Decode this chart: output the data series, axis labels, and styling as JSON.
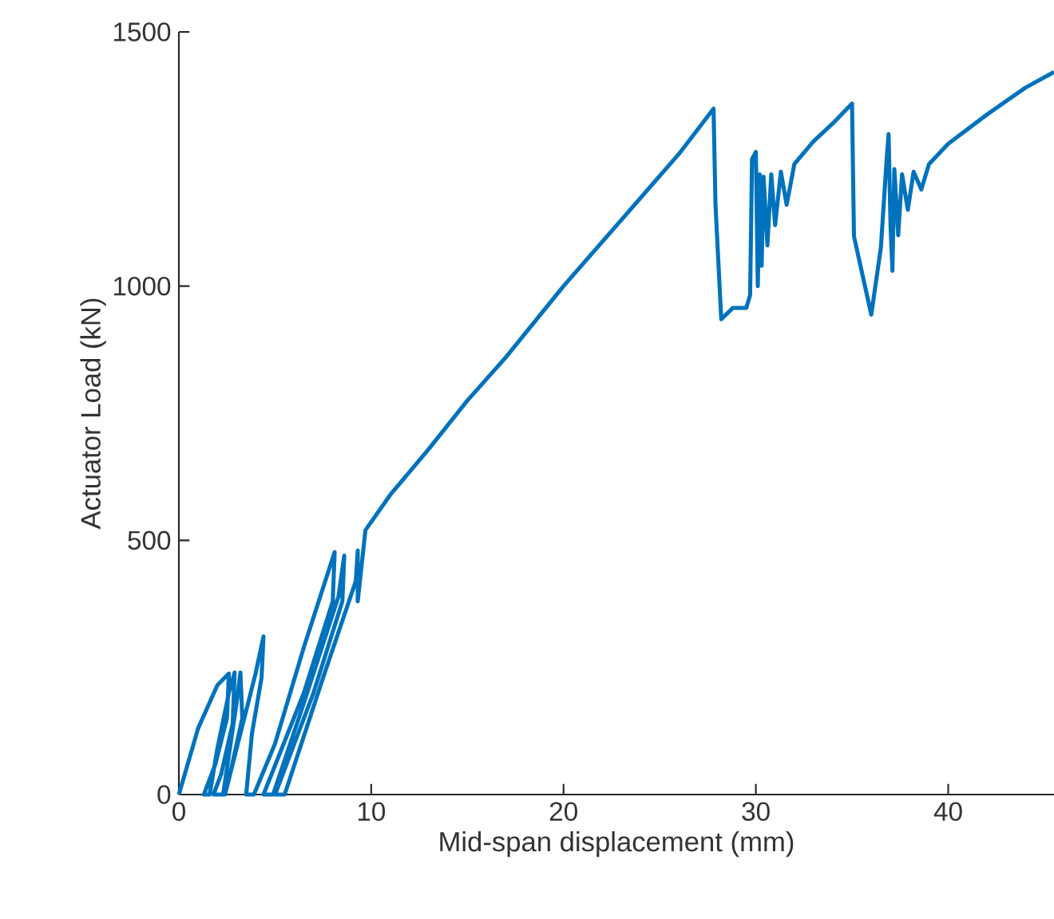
{
  "chart_data": {
    "type": "line",
    "xlabel": "Mid-span displacement (mm)",
    "ylabel": "Actuator Load (kN)",
    "xlim": [
      0,
      45.5
    ],
    "ylim": [
      0,
      1500
    ],
    "xticks": [
      0,
      10,
      20,
      30,
      40
    ],
    "yticks": [
      0,
      500,
      1000,
      1500
    ],
    "marker": "none",
    "series": [
      {
        "color": "#0072bd",
        "x": [
          0,
          1.0,
          2.0,
          2.6,
          2.5,
          1.9,
          1.3,
          1.6,
          2.0,
          2.6,
          2.9,
          2.8,
          2.2,
          1.8,
          2.3,
          3.0,
          3.2,
          3.3,
          2.6,
          2.4,
          4.0,
          4.4,
          4.3,
          3.8,
          3.5,
          3.9,
          5.0,
          6.5,
          8.1,
          8.0,
          6.5,
          4.4,
          4.9,
          6.5,
          8.3,
          8.6,
          8.5,
          7.0,
          5.0,
          5.5,
          7.5,
          9.2,
          9.3,
          9.3,
          9.7,
          11,
          13,
          15,
          17,
          20,
          23,
          26,
          27.8,
          27.9,
          28.2,
          28.8,
          29.5,
          29.7,
          29.8,
          30.0,
          30.1,
          30.2,
          30.3,
          30.4,
          30.6,
          30.8,
          31.0,
          31.3,
          31.6,
          32,
          33,
          34,
          35.0,
          35.1,
          36.0,
          36.5,
          36.8,
          36.9,
          37.0,
          37.1,
          37.2,
          37.4,
          37.6,
          37.9,
          38.2,
          38.6,
          39,
          40,
          42,
          44,
          45.5
        ],
        "values": [
          0,
          130,
          215,
          238,
          150,
          60,
          0,
          0,
          90,
          200,
          240,
          140,
          40,
          0,
          0,
          180,
          240,
          150,
          30,
          0,
          240,
          311,
          230,
          120,
          0,
          0,
          100,
          290,
          477,
          380,
          200,
          0,
          0,
          180,
          390,
          470,
          380,
          200,
          0,
          0,
          230,
          420,
          480,
          380,
          520,
          590,
          680,
          775,
          860,
          1000,
          1130,
          1260,
          1349,
          1160,
          935,
          957,
          957,
          982,
          1250,
          1264,
          1000,
          1220,
          1040,
          1215,
          1080,
          1220,
          1120,
          1225,
          1160,
          1240,
          1285,
          1320,
          1359,
          1098,
          944,
          1076,
          1250,
          1299,
          1120,
          1030,
          1230,
          1100,
          1220,
          1150,
          1225,
          1190,
          1240,
          1280,
          1337,
          1390,
          1421
        ]
      }
    ]
  }
}
